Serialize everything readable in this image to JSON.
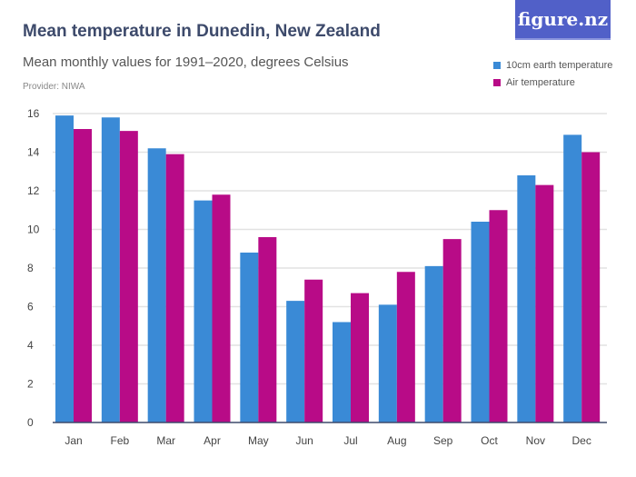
{
  "logo": "figure.nz",
  "chart_data": {
    "type": "bar",
    "title": "Mean temperature in Dunedin, New Zealand",
    "subtitle": "Mean monthly values for 1991–2020, degrees Celsius",
    "provider": "Provider: NIWA",
    "categories": [
      "Jan",
      "Feb",
      "Mar",
      "Apr",
      "May",
      "Jun",
      "Jul",
      "Aug",
      "Sep",
      "Oct",
      "Nov",
      "Dec"
    ],
    "series": [
      {
        "name": "10cm earth temperature",
        "color": "#3a8ad6",
        "values": [
          15.9,
          15.8,
          14.2,
          11.5,
          8.8,
          6.3,
          5.2,
          6.1,
          8.1,
          10.4,
          12.8,
          14.9
        ]
      },
      {
        "name": "Air temperature",
        "color": "#b80b87",
        "values": [
          15.2,
          15.1,
          13.9,
          11.8,
          9.6,
          7.4,
          6.7,
          7.8,
          9.5,
          11.0,
          12.3,
          14.0
        ]
      }
    ],
    "ylim": [
      0,
      16
    ],
    "yticks": [
      0,
      2,
      4,
      6,
      8,
      10,
      12,
      14,
      16
    ],
    "grid": true,
    "legend": "top-right"
  }
}
